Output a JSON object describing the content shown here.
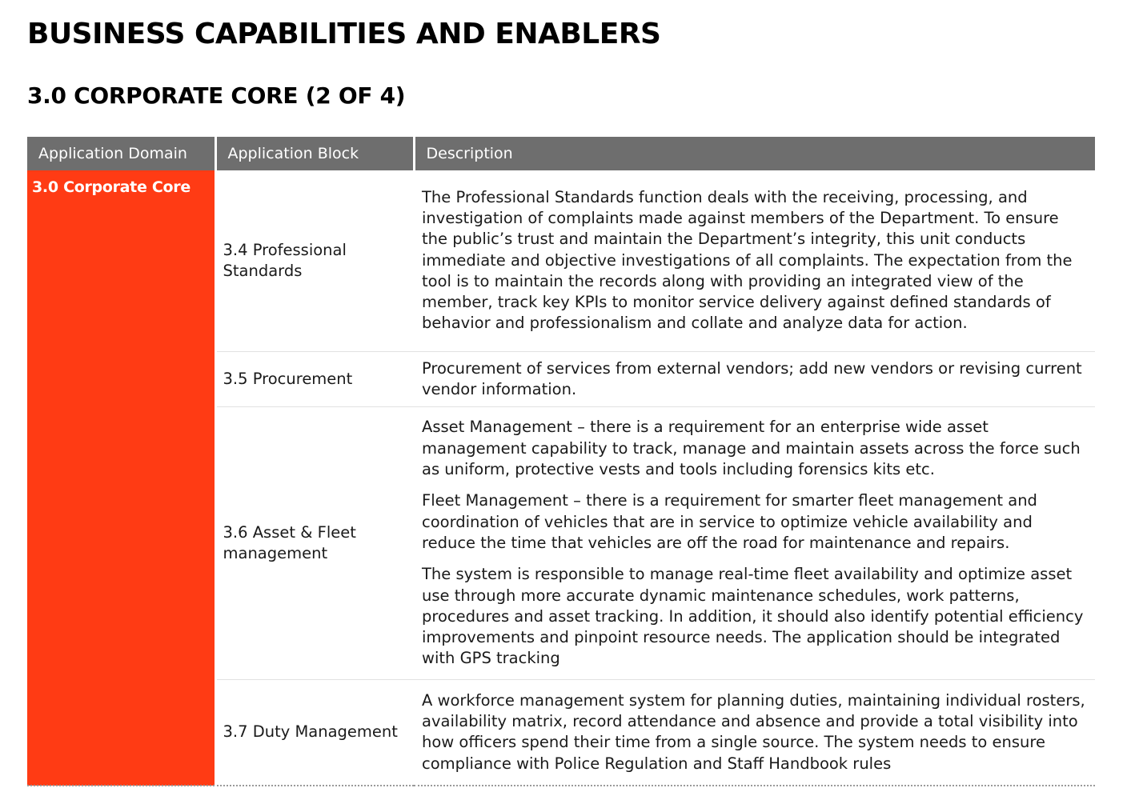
{
  "page": {
    "title": "BUSINESS CAPABILITIES AND ENABLERS",
    "section": "3.0 CORPORATE CORE (2 OF 4)"
  },
  "table": {
    "headers": [
      "Application Domain",
      "Application Block",
      "Description"
    ],
    "domain": "3.0 Corporate Core",
    "rows": [
      {
        "block": "3.4 Professional Standards",
        "paragraphs": [
          "The Professional Standards function deals with the receiving, processing, and investigation of complaints made against members of the Department. To ensure the public’s trust and maintain the Department’s integrity, this unit conducts immediate and objective investigations of all complaints. The expectation from the tool is to  maintain the records along with providing an integrated view of the member, track key KPIs to monitor service delivery against defined standards of behavior and professionalism and collate and analyze data for action."
        ]
      },
      {
        "block": "3.5 Procurement",
        "paragraphs": [
          "Procurement of services from external vendors; add new vendors or revising current vendor information."
        ]
      },
      {
        "block": "3.6 Asset & Fleet management",
        "paragraphs": [
          "Asset Management – there is a requirement for an enterprise wide asset management capability to track, manage and maintain assets across the force such as uniform, protective vests and tools including forensics kits etc.",
          "Fleet Management – there is a requirement for smarter fleet management and coordination of vehicles that are in service to optimize vehicle availability and reduce the time that vehicles are off the road for maintenance and repairs.",
          "The system is responsible to manage real-time fleet availability and optimize asset use through more accurate dynamic maintenance schedules, work patterns, procedures and asset tracking. In addition, it should also identify potential efficiency improvements and pinpoint resource needs. The application should be integrated with GPS tracking"
        ]
      },
      {
        "block": "3.7 Duty Management",
        "paragraphs": [
          "A workforce management system for planning duties, maintaining individual rosters, availability matrix, record attendance and absence and provide a total visibility into how officers spend their time from a single source. The system needs to  ensure compliance with Police Regulation and Staff Handbook rules"
        ]
      }
    ]
  },
  "colors": {
    "accent": "#ff3b14",
    "header_bg": "#6e6e6e"
  }
}
